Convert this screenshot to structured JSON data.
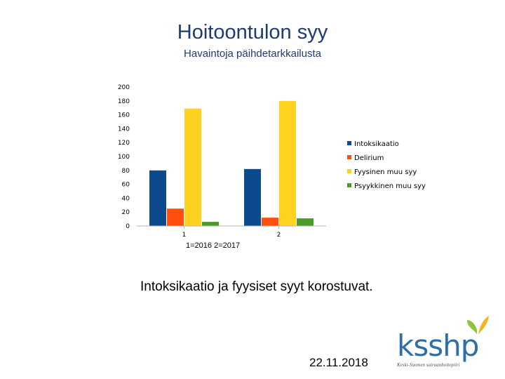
{
  "slide": {
    "title": "Hoitoontulon syy",
    "subtitle": "Havaintoja päihdetarkkailusta",
    "note": "1=2016 2=2017",
    "conclusion": "Intoksikaatio ja fyysiset syyt korostuvat.",
    "date": "22.11.2018"
  },
  "logo": {
    "word": "ksshp",
    "tagline": "Keski-Suomen sairaanhoitopiiri",
    "colors": {
      "word": "#2d6fa6",
      "butterfly_left": "#8cc63f",
      "butterfly_right": "#f2b51b"
    }
  },
  "chart_data": {
    "type": "bar",
    "categories": [
      "1",
      "2"
    ],
    "series": [
      {
        "name": "Intoksikaatio",
        "color": "#0b4a8c",
        "values": [
          80,
          82
        ]
      },
      {
        "name": "Delirium",
        "color": "#ff4f0f",
        "values": [
          25,
          12
        ]
      },
      {
        "name": "Fyysinen muu syy",
        "color": "#ffd21f",
        "values": [
          169,
          180
        ]
      },
      {
        "name": "Psyykkinen muu syy",
        "color": "#4c9a2a",
        "values": [
          6,
          11
        ]
      }
    ],
    "yticks": [
      "0",
      "20",
      "40",
      "60",
      "80",
      "100",
      "120",
      "140",
      "160",
      "180",
      "200"
    ],
    "ylim": [
      0,
      200
    ],
    "grid": false,
    "legend_position": "right"
  }
}
